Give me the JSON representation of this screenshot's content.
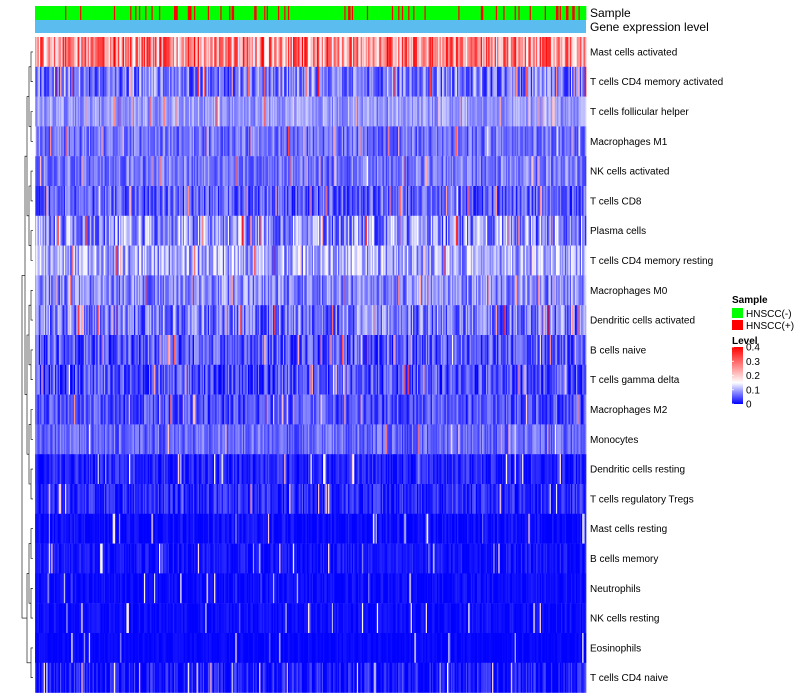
{
  "chart_data": {
    "type": "heatmap",
    "title": "",
    "annotation_tracks": [
      {
        "label": "Sample"
      },
      {
        "label": "Gene expression level"
      }
    ],
    "rows": [
      {
        "label": "Mast cells activated",
        "mean": 0.26,
        "spread": 0.13,
        "seed": 11
      },
      {
        "label": "T cells CD4 memory activated",
        "mean": 0.07,
        "spread": 0.06,
        "seed": 12
      },
      {
        "label": "T cells follicular helper",
        "mean": 0.09,
        "spread": 0.035,
        "seed": 13
      },
      {
        "label": "Macrophages M1",
        "mean": 0.065,
        "spread": 0.04,
        "seed": 14
      },
      {
        "label": "NK cells activated",
        "mean": 0.07,
        "spread": 0.04,
        "seed": 15
      },
      {
        "label": "T cells CD8",
        "mean": 0.055,
        "spread": 0.05,
        "seed": 16
      },
      {
        "label": "Plasma cells",
        "mean": 0.085,
        "spread": 0.07,
        "seed": 17
      },
      {
        "label": "T cells CD4 memory resting",
        "mean": 0.1,
        "spread": 0.06,
        "seed": 18
      },
      {
        "label": "Macrophages M0",
        "mean": 0.08,
        "spread": 0.05,
        "seed": 19
      },
      {
        "label": "Dendritic cells activated",
        "mean": 0.07,
        "spread": 0.06,
        "seed": 20
      },
      {
        "label": "B cells naive",
        "mean": 0.05,
        "spread": 0.05,
        "seed": 21
      },
      {
        "label": "T cells gamma delta",
        "mean": 0.045,
        "spread": 0.05,
        "seed": 22
      },
      {
        "label": "Macrophages M2",
        "mean": 0.045,
        "spread": 0.04,
        "seed": 23
      },
      {
        "label": "Monocytes",
        "mean": 0.06,
        "spread": 0.035,
        "seed": 24
      },
      {
        "label": "Dendritic cells resting",
        "mean": 0.02,
        "spread": 0.03,
        "seed": 25
      },
      {
        "label": "T cells regulatory  Tregs",
        "mean": 0.02,
        "spread": 0.035,
        "seed": 26
      },
      {
        "label": "Mast cells resting",
        "mean": 0.005,
        "spread": 0.02,
        "seed": 27
      },
      {
        "label": "B cells memory",
        "mean": 0.01,
        "spread": 0.02,
        "seed": 28
      },
      {
        "label": "Neutrophils",
        "mean": 0.005,
        "spread": 0.015,
        "seed": 29
      },
      {
        "label": "NK cells resting",
        "mean": 0.005,
        "spread": 0.015,
        "seed": 30
      },
      {
        "label": "Eosinophils",
        "mean": 0.002,
        "spread": 0.01,
        "seed": 31
      },
      {
        "label": "T cells CD4 naive",
        "mean": 0.01,
        "spread": 0.04,
        "seed": 32
      }
    ],
    "n_samples": 440,
    "sample_groups": [
      "HNSCC(-)",
      "HNSCC(+)"
    ],
    "sample_group_ratio": [
      0.84,
      0.16
    ],
    "sample_colors": {
      "HNSCC(-)": "#00ff00",
      "HNSCC(+)": "#ff0000"
    },
    "gene_expression_level_color": "#5bbcf0",
    "color_scale": {
      "min": 0,
      "max": 0.4,
      "colors": [
        "#0000ff",
        "#ffffff",
        "#ff0000"
      ],
      "midpoint": 0.15
    },
    "legend": {
      "sample_title": "Sample",
      "sample_items": [
        "HNSCC(-)",
        "HNSCC(+)"
      ],
      "level_title": "Level",
      "level_ticks": [
        "0.4",
        "0.3",
        "0.2",
        "0.1",
        "0"
      ],
      "level_tick_values": [
        0.4,
        0.3,
        0.2,
        0.1,
        0
      ],
      "position": "right"
    },
    "row_dendrogram": true
  }
}
